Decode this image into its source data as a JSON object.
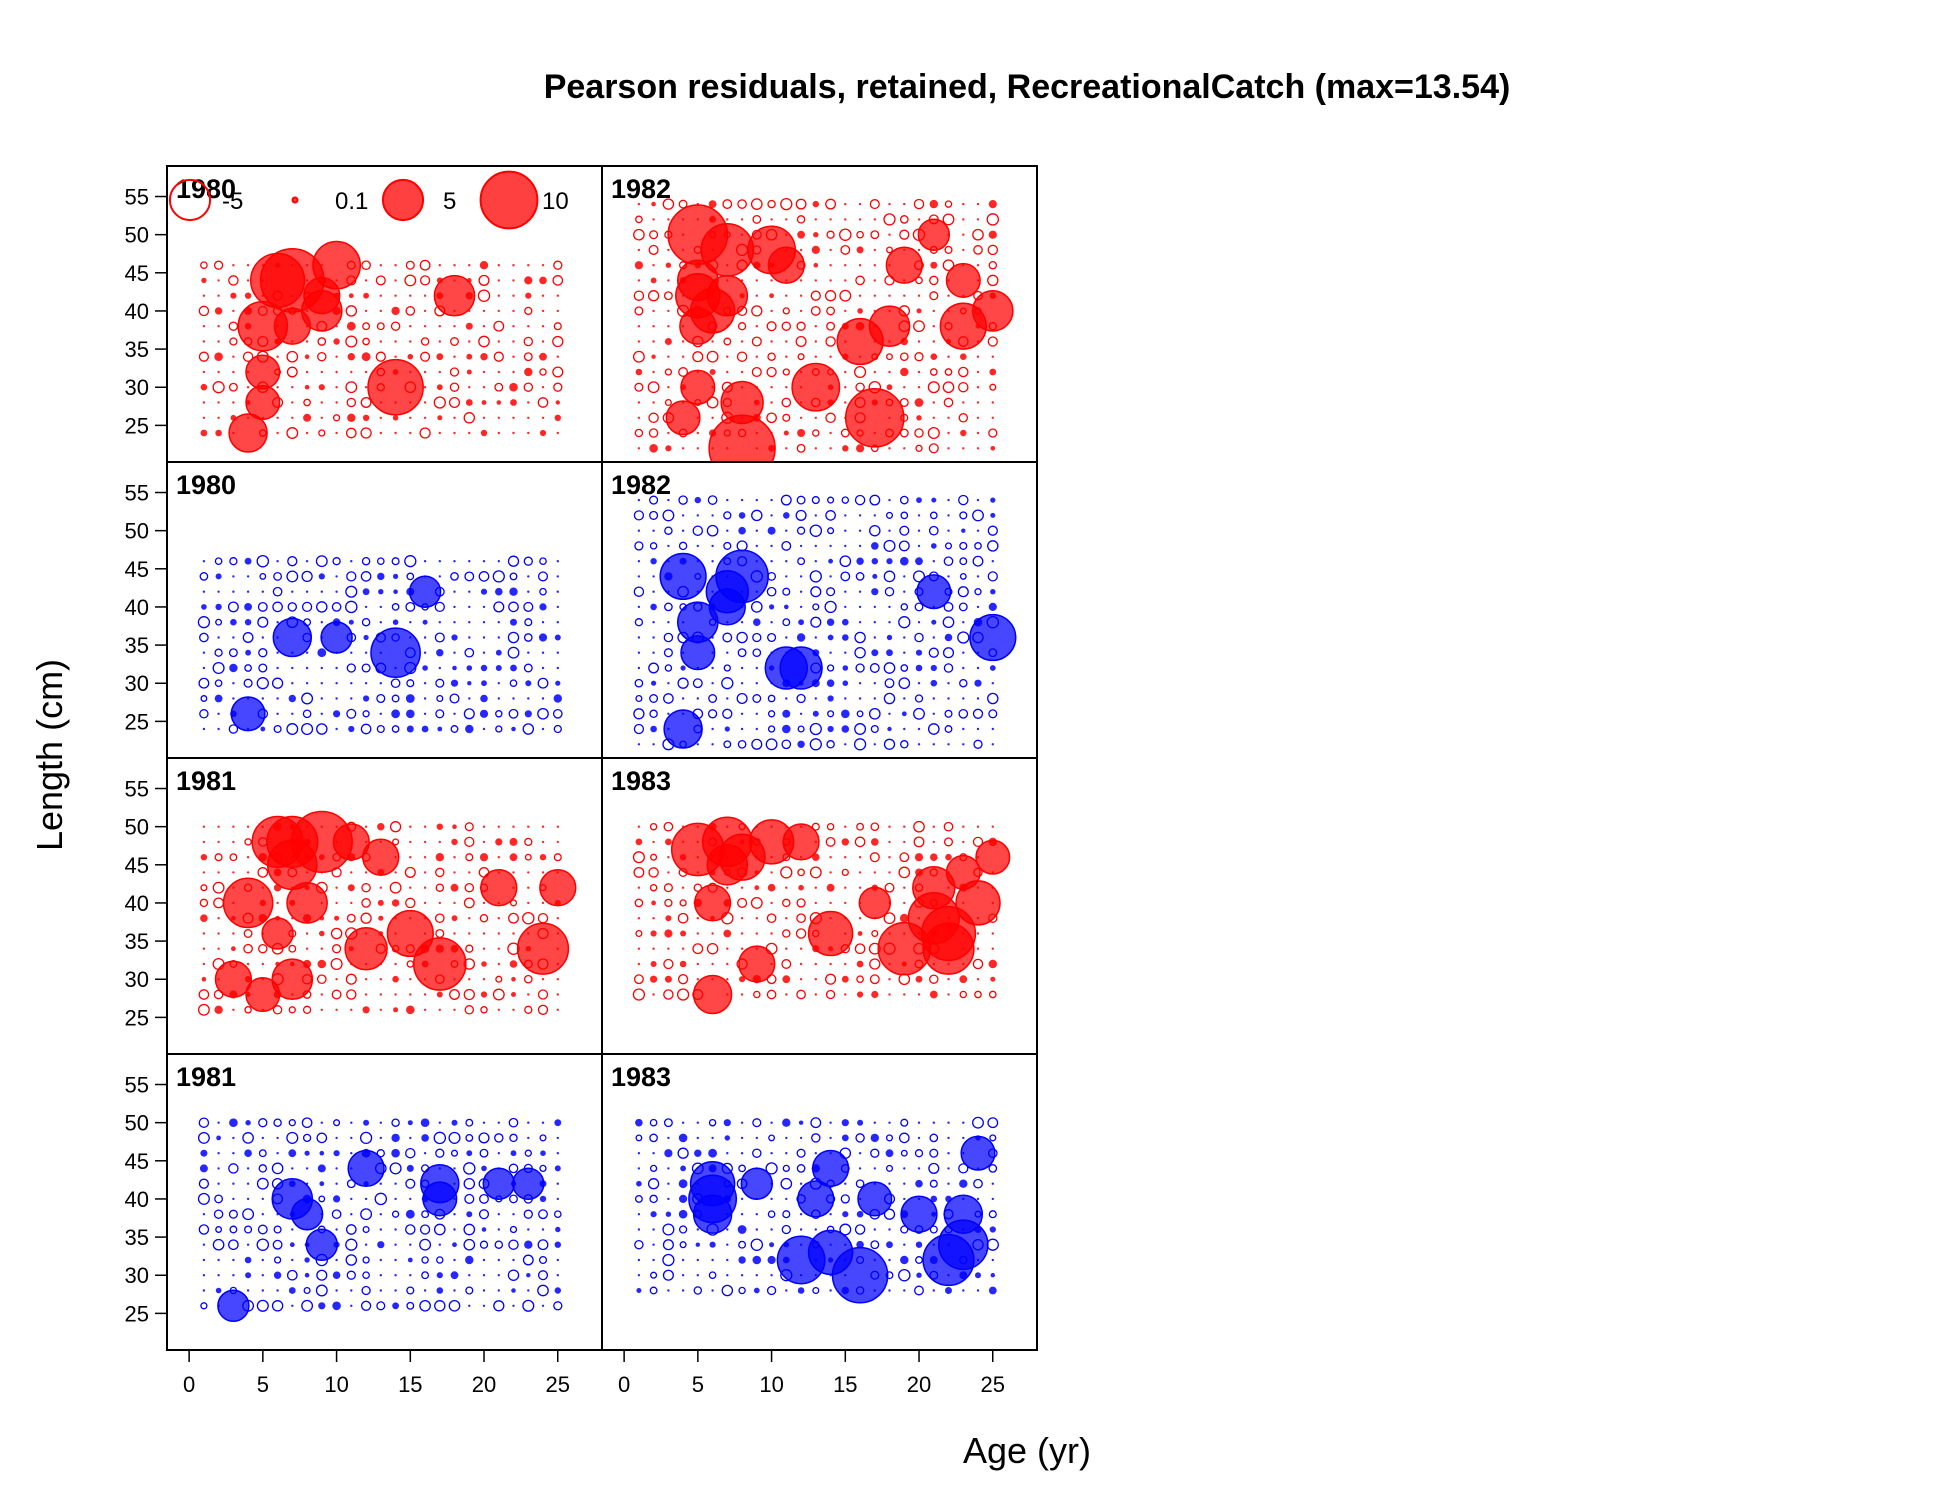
{
  "chart_data": {
    "type": "scatter",
    "title": "Pearson residuals, retained, RecreationalCatch (max=13.54)",
    "xlabel": "Age (yr)",
    "ylabel": "Length (cm)",
    "x_ticks": [
      0,
      5,
      10,
      15,
      20,
      25
    ],
    "y_ticks": [
      25,
      30,
      35,
      40,
      45,
      50,
      55
    ],
    "xlim": [
      -1.5,
      28
    ],
    "ylim": [
      20.2,
      59
    ],
    "max_residual": 13.54,
    "colors": {
      "positive": "#ff0000",
      "negative": "#0000ff"
    },
    "legend": {
      "placement": "top-left",
      "entries": [
        {
          "label": "-5",
          "value": -5
        },
        {
          "label": "0.1",
          "value": 0.1
        },
        {
          "label": "5",
          "value": 5
        },
        {
          "label": "10",
          "value": 10
        }
      ]
    },
    "panels": [
      {
        "year": "1980",
        "sign": "positive",
        "age_range": [
          1,
          25
        ],
        "len_range": [
          24,
          46
        ],
        "points": [
          {
            "age": 4,
            "len": 24,
            "res": 4.5
          },
          {
            "age": 5,
            "len": 28,
            "res": 3.5
          },
          {
            "age": 5,
            "len": 32,
            "res": 3.5
          },
          {
            "age": 5,
            "len": 38,
            "res": 7.5
          },
          {
            "age": 7,
            "len": 44,
            "res": 12.5
          },
          {
            "age": 6,
            "len": 44,
            "res": 9
          },
          {
            "age": 7,
            "len": 38,
            "res": 4
          },
          {
            "age": 9,
            "len": 40,
            "res": 5
          },
          {
            "age": 9,
            "len": 42,
            "res": 4
          },
          {
            "age": 10,
            "len": 46,
            "res": 7
          },
          {
            "age": 14,
            "len": 30,
            "res": 9.5
          },
          {
            "age": 18,
            "len": 42,
            "res": 5
          }
        ]
      },
      {
        "year": "1982",
        "sign": "positive",
        "age_range": [
          1,
          25
        ],
        "len_range": [
          22,
          54
        ],
        "points": [
          {
            "age": 5,
            "len": 50,
            "res": 11
          },
          {
            "age": 7,
            "len": 48,
            "res": 8.5
          },
          {
            "age": 5,
            "len": 44,
            "res": 5
          },
          {
            "age": 5,
            "len": 42,
            "res": 6
          },
          {
            "age": 6,
            "len": 40,
            "res": 6
          },
          {
            "age": 7,
            "len": 42,
            "res": 5
          },
          {
            "age": 5,
            "len": 38,
            "res": 4
          },
          {
            "age": 10,
            "len": 48,
            "res": 7
          },
          {
            "age": 11,
            "len": 46,
            "res": 4
          },
          {
            "age": 8,
            "len": 28,
            "res": 5.5
          },
          {
            "age": 8,
            "len": 22,
            "res": 13.5
          },
          {
            "age": 13,
            "len": 30,
            "res": 7
          },
          {
            "age": 17,
            "len": 26,
            "res": 10.5
          },
          {
            "age": 16,
            "len": 36,
            "res": 6.5
          },
          {
            "age": 18,
            "len": 38,
            "res": 5
          },
          {
            "age": 19,
            "len": 46,
            "res": 4
          },
          {
            "age": 21,
            "len": 50,
            "res": 3
          },
          {
            "age": 23,
            "len": 38,
            "res": 6.5
          },
          {
            "age": 25,
            "len": 40,
            "res": 5
          },
          {
            "age": 23,
            "len": 44,
            "res": 3.5
          },
          {
            "age": 4,
            "len": 26,
            "res": 3.5
          },
          {
            "age": 5,
            "len": 30,
            "res": 3.5
          }
        ]
      },
      {
        "year": "1980",
        "sign": "negative",
        "age_range": [
          1,
          25
        ],
        "len_range": [
          24,
          46
        ],
        "points": [
          {
            "age": 4,
            "len": 26,
            "res": 3.5
          },
          {
            "age": 7,
            "len": 36,
            "res": 4.5
          },
          {
            "age": 10,
            "len": 36,
            "res": 3
          },
          {
            "age": 14,
            "len": 34,
            "res": 7.5
          },
          {
            "age": 16,
            "len": 42,
            "res": 3
          }
        ]
      },
      {
        "year": "1982",
        "sign": "negative",
        "age_range": [
          1,
          25
        ],
        "len_range": [
          22,
          54
        ],
        "points": [
          {
            "age": 4,
            "len": 44,
            "res": 6.5
          },
          {
            "age": 8,
            "len": 44,
            "res": 8.5
          },
          {
            "age": 7,
            "len": 42,
            "res": 5.5
          },
          {
            "age": 5,
            "len": 38,
            "res": 5
          },
          {
            "age": 5,
            "len": 34,
            "res": 3.5
          },
          {
            "age": 4,
            "len": 24,
            "res": 4.5
          },
          {
            "age": 11,
            "len": 32,
            "res": 5.5
          },
          {
            "age": 12,
            "len": 32,
            "res": 5.5
          },
          {
            "age": 25,
            "len": 36,
            "res": 6.5
          },
          {
            "age": 21,
            "len": 42,
            "res": 3.5
          },
          {
            "age": 7,
            "len": 40,
            "res": 4
          }
        ]
      },
      {
        "year": "1981",
        "sign": "positive",
        "age_range": [
          1,
          25
        ],
        "len_range": [
          26,
          50
        ],
        "points": [
          {
            "age": 6,
            "len": 48,
            "res": 8
          },
          {
            "age": 7,
            "len": 48,
            "res": 8
          },
          {
            "age": 9,
            "len": 48,
            "res": 11.5
          },
          {
            "age": 7,
            "len": 45,
            "res": 7.5
          },
          {
            "age": 4,
            "len": 40,
            "res": 7.5
          },
          {
            "age": 8,
            "len": 40,
            "res": 5
          },
          {
            "age": 3,
            "len": 30,
            "res": 4
          },
          {
            "age": 5,
            "len": 28,
            "res": 3.5
          },
          {
            "age": 7,
            "len": 30,
            "res": 5
          },
          {
            "age": 6,
            "len": 36,
            "res": 3
          },
          {
            "age": 12,
            "len": 34,
            "res": 5.5
          },
          {
            "age": 15,
            "len": 36,
            "res": 6.5
          },
          {
            "age": 17,
            "len": 32,
            "res": 8.5
          },
          {
            "age": 24,
            "len": 34,
            "res": 8
          },
          {
            "age": 21,
            "len": 42,
            "res": 4
          },
          {
            "age": 25,
            "len": 42,
            "res": 4
          },
          {
            "age": 13,
            "len": 46,
            "res": 4
          },
          {
            "age": 11,
            "len": 48,
            "res": 4
          }
        ]
      },
      {
        "year": "1983",
        "sign": "positive",
        "age_range": [
          1,
          25
        ],
        "len_range": [
          28,
          50
        ],
        "points": [
          {
            "age": 5,
            "len": 47,
            "res": 8.5
          },
          {
            "age": 7,
            "len": 48,
            "res": 7.5
          },
          {
            "age": 8,
            "len": 46,
            "res": 6.5
          },
          {
            "age": 7,
            "len": 45,
            "res": 5
          },
          {
            "age": 10,
            "len": 48,
            "res": 6
          },
          {
            "age": 12,
            "len": 48,
            "res": 4
          },
          {
            "age": 6,
            "len": 40,
            "res": 4
          },
          {
            "age": 6,
            "len": 28,
            "res": 4.5
          },
          {
            "age": 9,
            "len": 32,
            "res": 4
          },
          {
            "age": 14,
            "len": 36,
            "res": 6
          },
          {
            "age": 19,
            "len": 34,
            "res": 8.5
          },
          {
            "age": 21,
            "len": 38,
            "res": 8
          },
          {
            "age": 22,
            "len": 36,
            "res": 9
          },
          {
            "age": 22,
            "len": 34,
            "res": 8
          },
          {
            "age": 24,
            "len": 40,
            "res": 6
          },
          {
            "age": 21,
            "len": 42,
            "res": 5.5
          },
          {
            "age": 23,
            "len": 44,
            "res": 3.5
          },
          {
            "age": 25,
            "len": 46,
            "res": 3.5
          },
          {
            "age": 17,
            "len": 40,
            "res": 3
          }
        ]
      },
      {
        "year": "1981",
        "sign": "negative",
        "age_range": [
          1,
          25
        ],
        "len_range": [
          26,
          50
        ],
        "points": [
          {
            "age": 7,
            "len": 40,
            "res": 5
          },
          {
            "age": 12,
            "len": 44,
            "res": 4
          },
          {
            "age": 17,
            "len": 42,
            "res": 4.5
          },
          {
            "age": 17,
            "len": 40,
            "res": 3.5
          },
          {
            "age": 21,
            "len": 42,
            "res": 3
          },
          {
            "age": 23,
            "len": 42,
            "res": 3
          },
          {
            "age": 3,
            "len": 26,
            "res": 3
          },
          {
            "age": 9,
            "len": 34,
            "res": 3
          },
          {
            "age": 8,
            "len": 38,
            "res": 3
          }
        ]
      },
      {
        "year": "1983",
        "sign": "negative",
        "age_range": [
          1,
          25
        ],
        "len_range": [
          28,
          50
        ],
        "points": [
          {
            "age": 6,
            "len": 42,
            "res": 6
          },
          {
            "age": 6,
            "len": 40,
            "res": 7
          },
          {
            "age": 6,
            "len": 38,
            "res": 4.5
          },
          {
            "age": 12,
            "len": 32,
            "res": 7
          },
          {
            "age": 14,
            "len": 33,
            "res": 6
          },
          {
            "age": 16,
            "len": 30,
            "res": 9.5
          },
          {
            "age": 22,
            "len": 32,
            "res": 8
          },
          {
            "age": 23,
            "len": 34,
            "res": 7.5
          },
          {
            "age": 23,
            "len": 38,
            "res": 4.5
          },
          {
            "age": 14,
            "len": 44,
            "res": 4
          },
          {
            "age": 13,
            "len": 40,
            "res": 4
          },
          {
            "age": 20,
            "len": 38,
            "res": 4
          },
          {
            "age": 24,
            "len": 46,
            "res": 3.5
          },
          {
            "age": 17,
            "len": 40,
            "res": 3.5
          },
          {
            "age": 9,
            "len": 42,
            "res": 3
          }
        ]
      }
    ]
  }
}
